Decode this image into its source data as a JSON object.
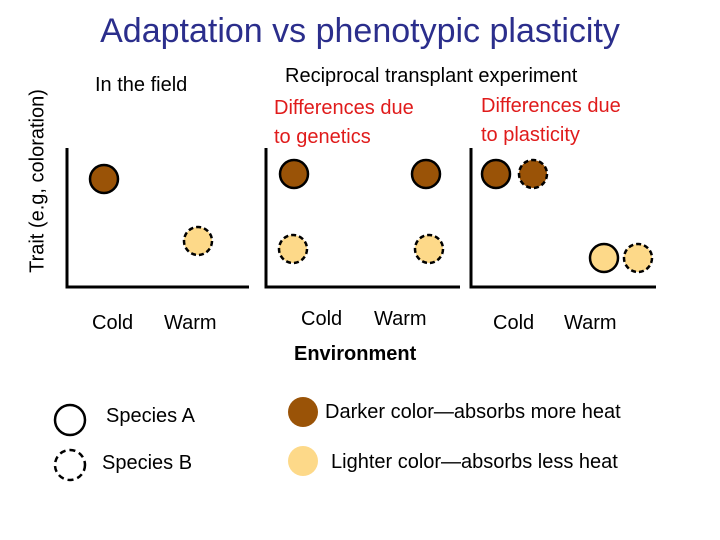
{
  "title": "Adaptation vs phenotypic plasticity",
  "y_axis_label": "Trait (e.g, coloration)",
  "panel_headers": {
    "field": "In the field",
    "transplant": "Reciprocal transplant experiment"
  },
  "annotations": {
    "genetics_line1": "Differences due",
    "genetics_line2": "to genetics",
    "plasticity_line1": "Differences due",
    "plasticity_line2": "to plasticity"
  },
  "panels": [
    {
      "ticks": [
        "Cold",
        "Warm"
      ]
    },
    {
      "ticks": [
        "Cold",
        "Warm"
      ]
    },
    {
      "ticks": [
        "Cold",
        "Warm"
      ]
    }
  ],
  "x_axis_label": "Environment",
  "legend": {
    "species_a": "Species A",
    "species_b": "Species B",
    "darker": "Darker color—absorbs more heat",
    "lighter": "Lighter color—absorbs less heat"
  },
  "colors": {
    "dark": "#9a5307",
    "light": "#fdd989",
    "title": "#2b2e8c",
    "annotation": "#e01b1b"
  }
}
